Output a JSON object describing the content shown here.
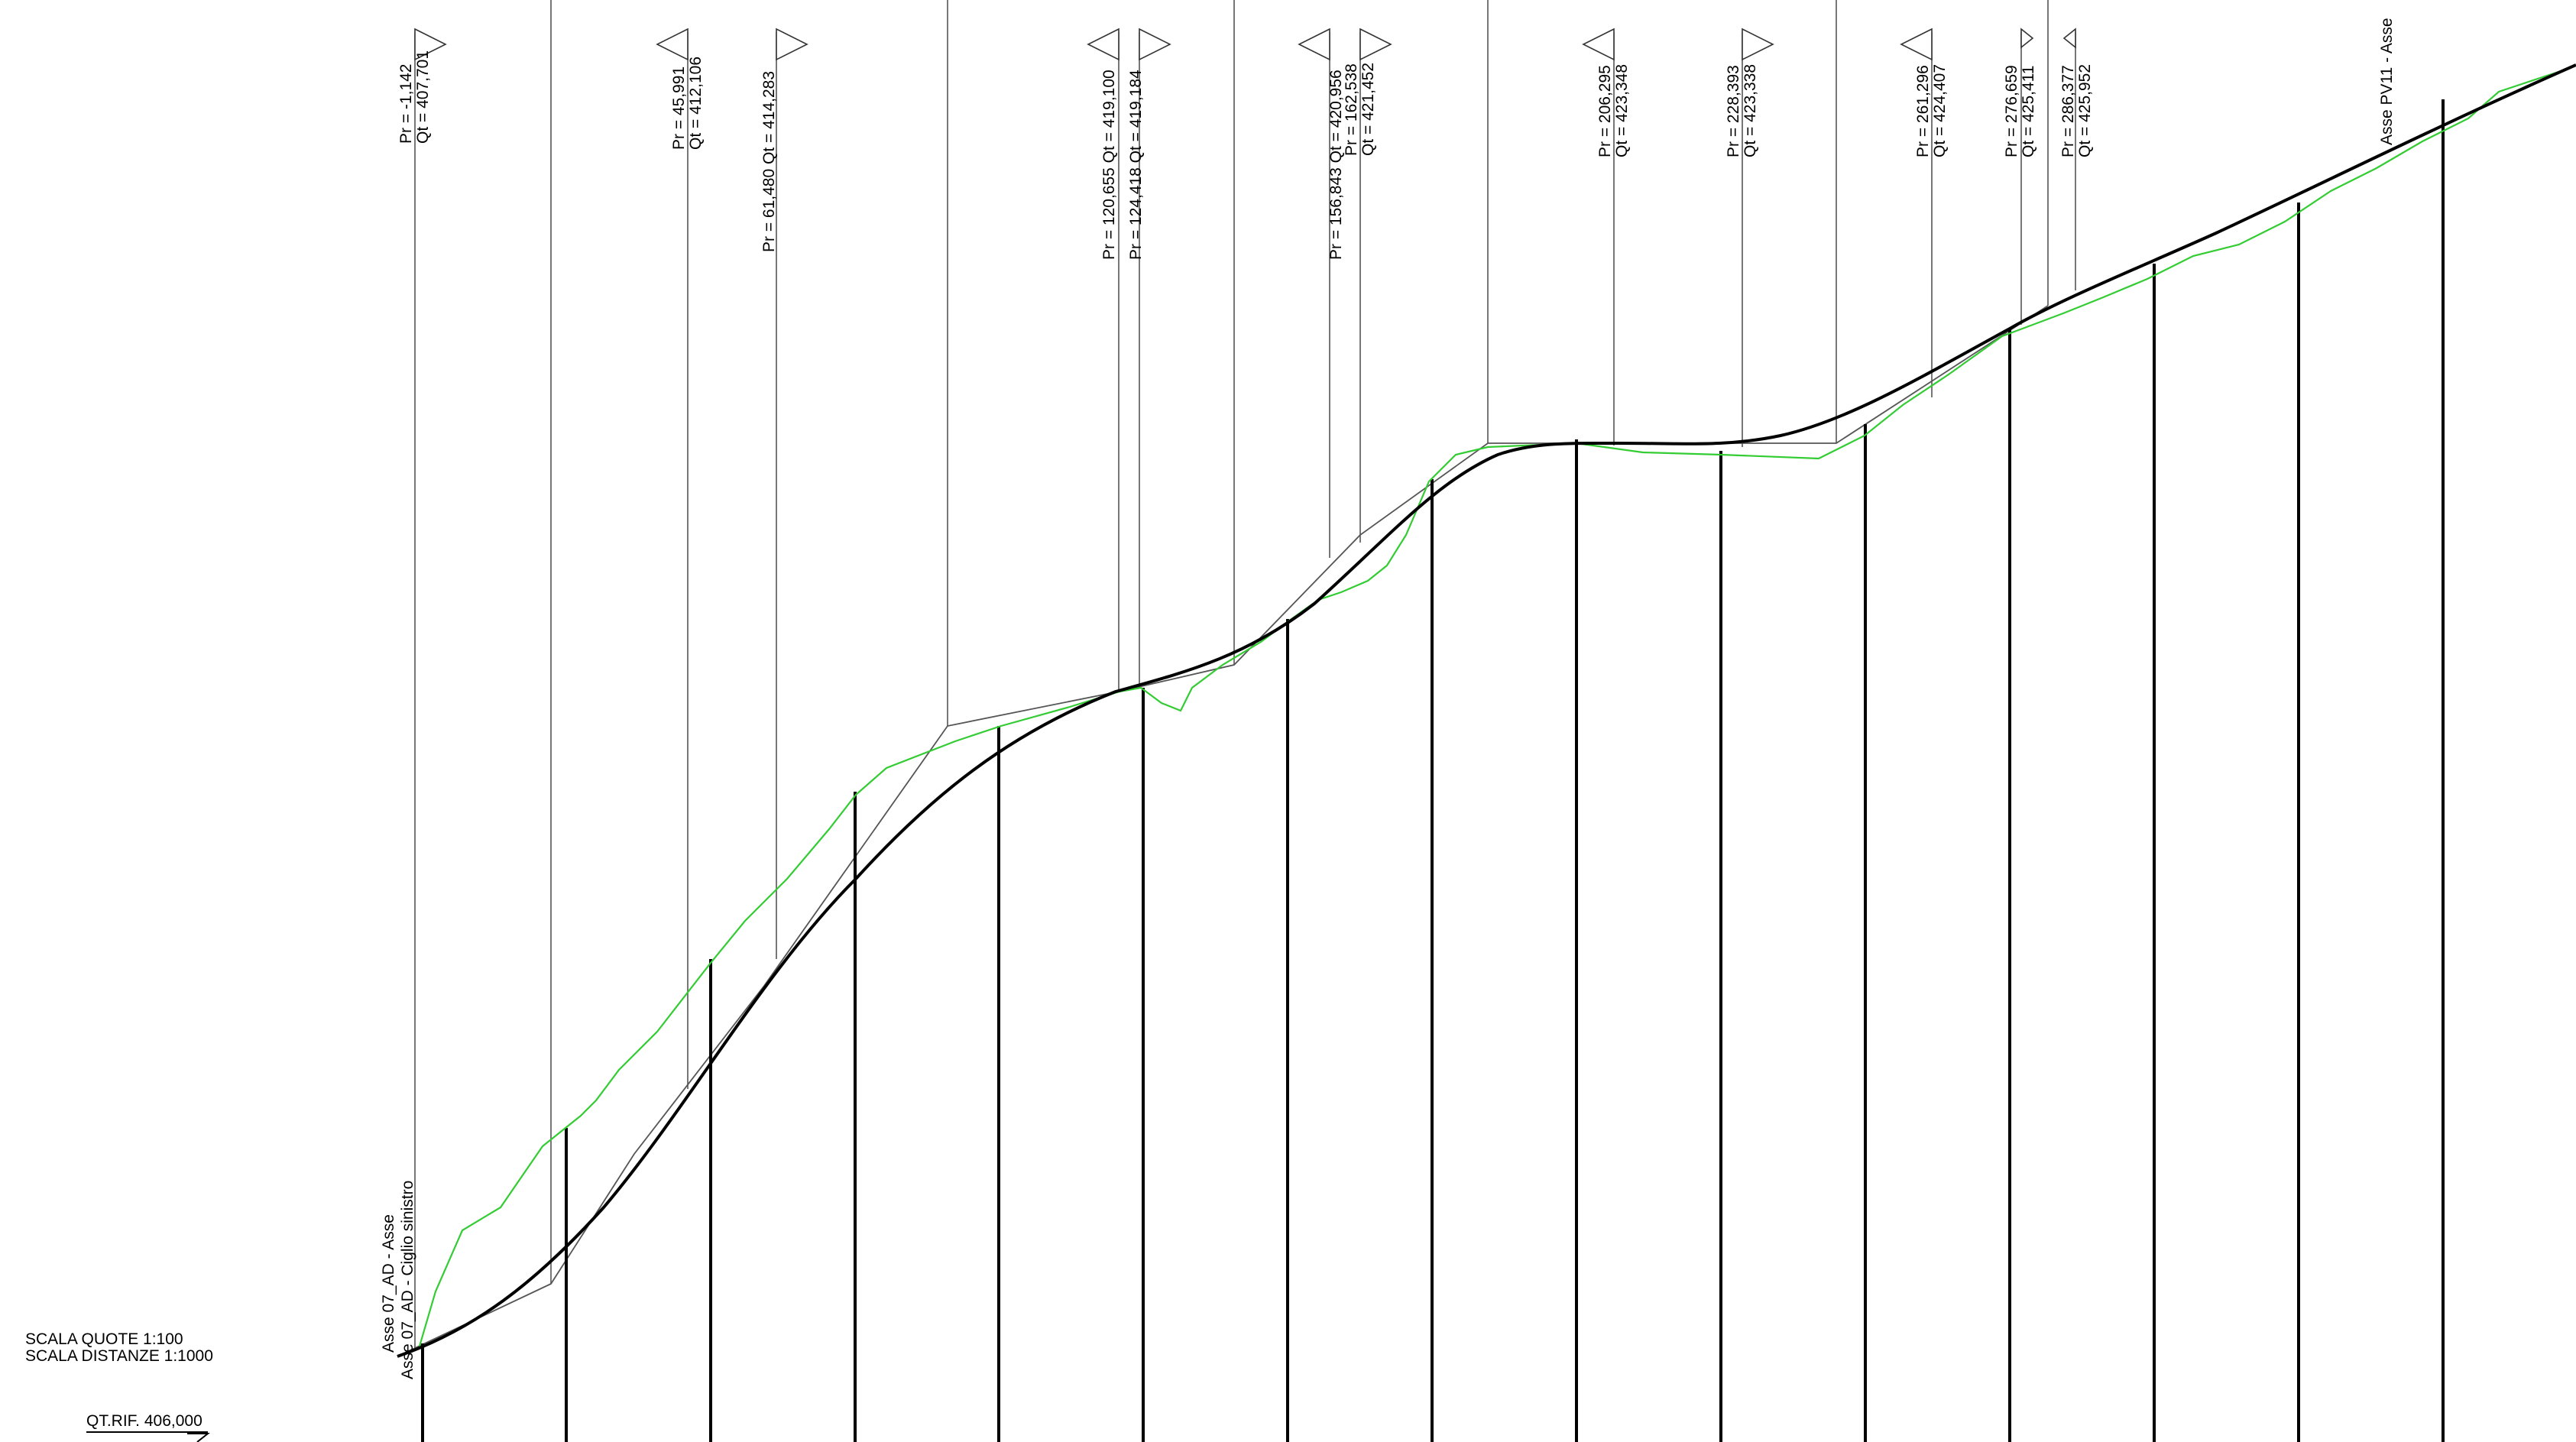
{
  "title_block": {
    "scale_heights": "SCALA QUOTE 1:100",
    "scale_distances": "SCALA DISTANZE 1:1000",
    "reference_elevation": "QT.RIF. 406,000"
  },
  "axis_labels": {
    "axis_main": "Asse 07_AD - Asse",
    "axis_left_edge": "Asse 07_AD - Ciglio sinistro",
    "axis_intersection": "Asse PV11 - Asse"
  },
  "vertices": [
    {
      "side": "right",
      "lines": [
        "Pr = -1,142",
        "Qt = 407,701"
      ]
    },
    {
      "side": "left",
      "lines": [
        "Pr = 45,991",
        "Qt = 412,106"
      ]
    },
    {
      "side": "right",
      "lines": [
        "Pr = 61,480  Qt = 414,283"
      ]
    },
    {
      "side": "left",
      "lines": [
        "Pr = 120,655  Qt = 419,100"
      ]
    },
    {
      "side": "right",
      "lines": [
        "Pr = 124,418  Qt = 419,184"
      ]
    },
    {
      "side": "left",
      "lines": [
        "Pr = 156,843  Qt = 420,956"
      ]
    },
    {
      "side": "right",
      "lines": [
        "Pr = 162,538",
        "Qt = 421,452"
      ]
    },
    {
      "side": "left",
      "lines": [
        "Pr = 206,295",
        "Qt = 423,348"
      ]
    },
    {
      "side": "right",
      "lines": [
        "Pr = 228,393",
        "Qt = 423,338"
      ]
    },
    {
      "side": "left",
      "lines": [
        "Pr = 261,296",
        "Qt = 424,407"
      ]
    },
    {
      "side": "right",
      "lines": [
        "Pr = 276,659",
        "Qt = 425,411"
      ]
    },
    {
      "side": "left",
      "lines": [
        "Pr = 286,377",
        "Qt = 425,952"
      ]
    }
  ],
  "colors": {
    "project_profile": "#000000",
    "terrain_profile": "#22cc22",
    "construction_lines": "#555555"
  }
}
